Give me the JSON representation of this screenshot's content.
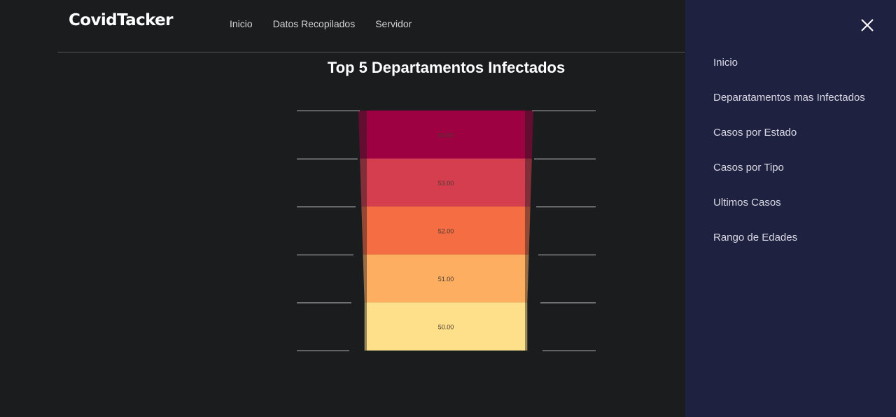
{
  "header": {
    "brand": "CovidTacker",
    "nav": [
      "Inicio",
      "Datos Recopilados",
      "Servidor"
    ]
  },
  "main": {
    "title": "Top 5 Departamentos Infectados"
  },
  "chart_data": {
    "type": "funnel",
    "title": "Top 5 Departamentos Infectados",
    "values": [
      54.0,
      53.0,
      52.0,
      51.0,
      50.0
    ],
    "labels": [
      "54.00",
      "53.00",
      "52.00",
      "51.00",
      "50.00"
    ],
    "colors": [
      "#9e0142",
      "#d53e4f",
      "#f46d43",
      "#fdae61",
      "#fee08b"
    ]
  },
  "sidemenu": {
    "close_icon": "close-icon",
    "items": [
      "Inicio",
      "Deparatamentos mas Infectados",
      "Casos por Estado",
      "Casos por Tipo",
      "Ultimos Casos",
      "Rango de Edades"
    ]
  }
}
